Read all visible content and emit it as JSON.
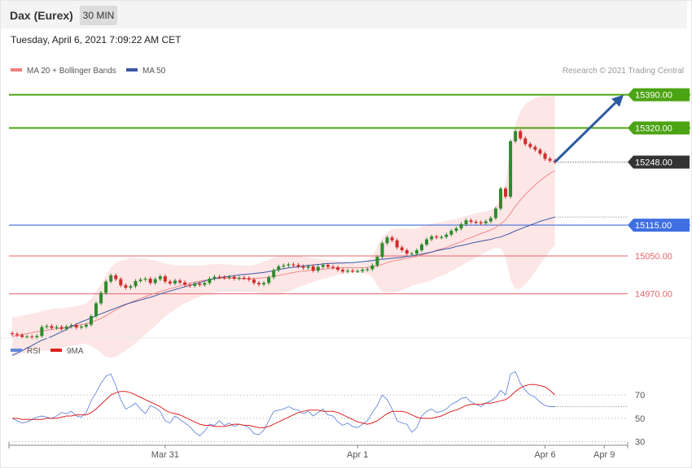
{
  "header": {
    "instrument": "Dax (Eurex)",
    "timeframe": "30 MIN",
    "datetime": "Tuesday, April 6, 2021 7:09:22 AM CET"
  },
  "legend": {
    "ma20_label": "MA 20 + Bollinger Bands",
    "ma50_label": "MA 50",
    "credit": "Research © 2021 Trading Central",
    "rsi_label": "RSI",
    "rsi_ma_label": "9MA"
  },
  "colors": {
    "resistance": "#4ca313",
    "pivot": "#3f6fe0",
    "support": "#e8636a",
    "current": "#333333",
    "ma20": "#f08080",
    "ma50": "#3b57a6",
    "bollinger_fill": "#fde3e3",
    "up_candle": "#2e8b2e",
    "down_candle": "#d22b2b",
    "arrow": "#2c5aa0",
    "rsi": "#6688dd",
    "rsi_ma": "#dd2222"
  },
  "chart_data": {
    "type": "candlestick",
    "y_axis_range": [
      14870,
      15470
    ],
    "levels": [
      {
        "role": "resistance",
        "label": "15390.00",
        "value": 15390
      },
      {
        "role": "resistance",
        "label": "15320.00",
        "value": 15320
      },
      {
        "role": "current",
        "label": "15248.00",
        "value": 15248
      },
      {
        "role": "pivot",
        "label": "15115.00",
        "value": 15115
      },
      {
        "role": "support",
        "label": "15050.00",
        "value": 15050
      },
      {
        "role": "support",
        "label": "14970.00",
        "value": 14970
      }
    ],
    "x_tick_labels": [
      "Mar 31",
      "Apr 1",
      "Apr 6",
      "Apr 9"
    ],
    "x_tick_bars": [
      31,
      70,
      108,
      120
    ],
    "closes": [
      14885,
      14883,
      14879,
      14880,
      14878,
      14881,
      14900,
      14902,
      14898,
      14900,
      14896,
      14901,
      14904,
      14899,
      14901,
      14905,
      14923,
      14950,
      14972,
      14996,
      15009,
      15001,
      14988,
      14983,
      14986,
      14997,
      15000,
      15002,
      14993,
      15001,
      15007,
      14996,
      14992,
      14998,
      14994,
      14989,
      14987,
      14992,
      14989,
      14993,
      15002,
      15006,
      15005,
      15004,
      15006,
      15002,
      15004,
      15003,
      15000,
      14993,
      14990,
      14993,
      15005,
      15020,
      15028,
      15030,
      15032,
      15031,
      15028,
      15025,
      15028,
      15019,
      15027,
      15031,
      15027,
      15026,
      15021,
      15017,
      15019,
      15018,
      15018,
      15021,
      15022,
      15030,
      15048,
      15077,
      15089,
      15083,
      15068,
      15062,
      15055,
      15055,
      15062,
      15074,
      15085,
      15091,
      15089,
      15090,
      15095,
      15103,
      15108,
      15117,
      15125,
      15122,
      15121,
      15119,
      15123,
      15130,
      15150,
      15192,
      15175,
      15292,
      15313,
      15298,
      15286,
      15280,
      15274,
      15266,
      15255,
      15251,
      15248
    ],
    "ma50": [
      14840,
      14845,
      14850,
      14856,
      14861,
      14867,
      14872,
      14876,
      14880,
      14885,
      14890,
      14895,
      14901,
      14906,
      14911,
      14915,
      14919,
      14924,
      14928,
      14932,
      14936,
      14940,
      14944,
      14948,
      14951,
      14954,
      14957,
      14960,
      14963,
      14966,
      14970,
      14973,
      14976,
      14979,
      14982,
      14985,
      14988,
      14991,
      14994,
      14997,
      15000,
      15002,
      15004,
      15006,
      15007,
      15008,
      15010,
      15011,
      15012,
      15013,
      15014,
      15015,
      15017,
      15019,
      15021,
      15023,
      15025,
      15026,
      15027,
      15029,
      15030,
      15031,
      15032,
      15033,
      15034,
      15034,
      15035,
      15035,
      15036,
      15036,
      15037,
      15038,
      15039,
      15040,
      15042,
      15043,
      15044,
      15045,
      15046,
      15047,
      15049,
      15050,
      15052,
      15054,
      15056,
      15058,
      15061,
      15063,
      15065,
      15067,
      15070,
      15072,
      15074,
      15077,
      15079,
      15081,
      15083,
      15085,
      15088,
      15090,
      15094,
      15098,
      15103,
      15107,
      15111,
      15115,
      15119,
      15123,
      15126,
      15129,
      15132
    ],
    "ma20": [
      14880,
      14882,
      14884,
      14886,
      14888,
      14890,
      14892,
      14893,
      14895,
      14896,
      14898,
      14899,
      14901,
      14903,
      14905,
      14907,
      14910,
      14914,
      14918,
      14924,
      14930,
      14936,
      14942,
      14947,
      14952,
      14956,
      14960,
      14964,
      14968,
      14971,
      14975,
      14978,
      14981,
      14984,
      14987,
      14990,
      14992,
      14995,
      14997,
      14999,
      15000,
      15002,
      15003,
      15003,
      15003,
      15003,
      15002,
      15002,
      15002,
      15002,
      15003,
      15004,
      15005,
      15007,
      15009,
      15011,
      15013,
      15015,
      15017,
      15018,
      15019,
      15020,
      15021,
      15022,
      15023,
      15024,
      15025,
      15025,
      15025,
      15025,
      15025,
      15025,
      15026,
      15027,
      15029,
      15032,
      15036,
      15039,
      15041,
      15043,
      15045,
      15047,
      15049,
      15052,
      15055,
      15058,
      15062,
      15065,
      15068,
      15072,
      15076,
      15080,
      15085,
      15089,
      15093,
      15097,
      15101,
      15105,
      15110,
      15118,
      15126,
      15140,
      15155,
      15168,
      15180,
      15190,
      15200,
      15209,
      15217,
      15224,
      15230
    ],
    "bollinger_upper_band": [
      14920,
      14922,
      14924,
      14926,
      14928,
      14930,
      14934,
      14936,
      14938,
      14939,
      14940,
      14941,
      14942,
      14944,
      14946,
      14950,
      14960,
      14975,
      14990,
      15010,
      15025,
      15035,
      15040,
      15043,
      15046,
      15046,
      15045,
      15044,
      15042,
      15040,
      15037,
      15034,
      15032,
      15031,
      15030,
      15030,
      15030,
      15030,
      15030,
      15031,
      15032,
      15033,
      15033,
      15032,
      15032,
      15031,
      15030,
      15030,
      15030,
      15031,
      15034,
      15038,
      15042,
      15046,
      15049,
      15051,
      15052,
      15051,
      15050,
      15048,
      15046,
      15045,
      15044,
      15043,
      15042,
      15041,
      15040,
      15038,
      15036,
      15035,
      15035,
      15036,
      15040,
      15050,
      15070,
      15090,
      15100,
      15106,
      15108,
      15108,
      15108,
      15107,
      15108,
      15112,
      15115,
      15118,
      15120,
      15122,
      15124,
      15126,
      15128,
      15131,
      15134,
      15137,
      15140,
      15142,
      15144,
      15147,
      15153,
      15170,
      15205,
      15280,
      15330,
      15355,
      15370,
      15378,
      15383,
      15386,
      15387,
      15387,
      15388
    ],
    "bollinger_lower_band": [
      14840,
      14842,
      14844,
      14846,
      14848,
      14850,
      14850,
      14850,
      14852,
      14853,
      14856,
      14857,
      14860,
      14862,
      14864,
      14864,
      14860,
      14853,
      14846,
      14838,
      14835,
      14837,
      14844,
      14851,
      14858,
      14866,
      14875,
      14884,
      14894,
      14902,
      14913,
      14922,
      14930,
      14937,
      14944,
      14950,
      14954,
      14960,
      14964,
      14967,
      14968,
      14971,
      14973,
      14974,
      14974,
      14975,
      14974,
      14974,
      14974,
      14973,
      14972,
      14970,
      14968,
      14968,
      14969,
      14971,
      14974,
      14979,
      14984,
      14988,
      14992,
      14995,
      14998,
      15001,
      15004,
      15007,
      15010,
      15012,
      15014,
      15015,
      15015,
      15014,
      15012,
      15004,
      14988,
      14974,
      14972,
      14972,
      14974,
      14978,
      14982,
      14987,
      14990,
      14992,
      14995,
      14998,
      15004,
      15008,
      15012,
      15018,
      15024,
      15029,
      15036,
      15041,
      15046,
      15052,
      15058,
      15063,
      15067,
      15066,
      15047,
      15000,
      14980,
      14981,
      14990,
      15002,
      15017,
      15032,
      15047,
      15061,
      15072
    ],
    "projection_arrow": {
      "from": {
        "bar": 110,
        "value": 15248
      },
      "to": {
        "bar": 122,
        "value": 15390
      }
    },
    "rsi_panel": {
      "y_axis_range": [
        20,
        100
      ],
      "levels": [
        70,
        50,
        30
      ],
      "rsi": [
        50,
        48,
        46,
        47,
        49,
        51,
        52,
        51,
        50,
        52,
        55,
        54,
        56,
        52,
        51,
        55,
        65,
        72,
        80,
        86,
        88,
        78,
        66,
        58,
        60,
        63,
        58,
        54,
        61,
        59,
        56,
        48,
        46,
        52,
        49,
        46,
        43,
        38,
        35,
        39,
        45,
        44,
        48,
        44,
        46,
        43,
        45,
        44,
        42,
        37,
        36,
        40,
        48,
        56,
        57,
        58,
        60,
        58,
        57,
        54,
        56,
        52,
        55,
        58,
        53,
        52,
        47,
        44,
        46,
        43,
        42,
        45,
        48,
        55,
        61,
        70,
        66,
        58,
        48,
        46,
        45,
        38,
        42,
        52,
        56,
        58,
        55,
        56,
        58,
        62,
        64,
        67,
        68,
        64,
        62,
        60,
        63,
        65,
        68,
        74,
        70,
        88,
        90,
        80,
        74,
        70,
        68,
        64,
        61,
        60,
        60
      ],
      "rsi_ma": [
        50,
        50,
        49,
        49,
        49,
        49,
        49,
        50,
        50,
        50,
        51,
        52,
        52,
        53,
        53,
        53,
        55,
        58,
        62,
        66,
        70,
        72,
        73,
        73,
        72,
        70,
        68,
        66,
        64,
        62,
        60,
        57,
        55,
        54,
        53,
        51,
        49,
        47,
        45,
        44,
        44,
        43,
        43,
        43,
        44,
        45,
        45,
        44,
        44,
        43,
        42,
        42,
        43,
        45,
        47,
        49,
        51,
        53,
        55,
        56,
        57,
        57,
        57,
        56,
        56,
        56,
        55,
        53,
        51,
        49,
        47,
        46,
        45,
        46,
        48,
        51,
        54,
        56,
        56,
        56,
        55,
        53,
        51,
        50,
        50,
        50,
        51,
        52,
        54,
        56,
        57,
        59,
        61,
        62,
        62,
        62,
        63,
        63,
        64,
        65,
        66,
        69,
        73,
        76,
        78,
        79,
        79,
        78,
        77,
        74,
        70
      ]
    }
  }
}
